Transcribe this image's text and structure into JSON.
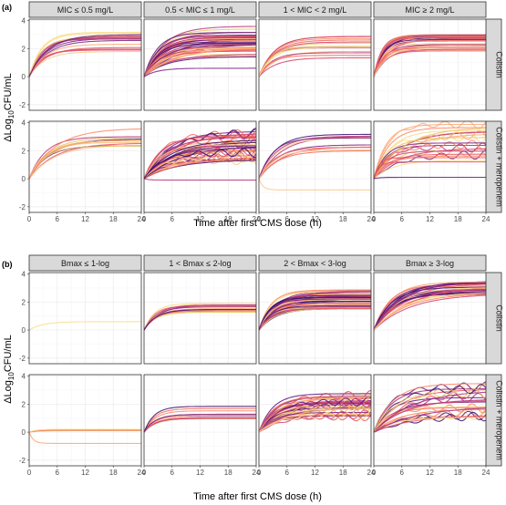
{
  "chart_data": [
    {
      "tag": "(a)",
      "type": "line",
      "xlabel": "Time after first CMS dose (h)",
      "ylabel_main": "ΔLog",
      "ylabel_sub": "10",
      "ylabel_rest": "CFU/mL",
      "xlim": [
        0,
        24
      ],
      "ylim": [
        -2.4,
        4.1
      ],
      "xticks": [
        "0",
        "6",
        "12",
        "18",
        "24"
      ],
      "yticks": [
        "-2",
        "0",
        "2",
        "4"
      ],
      "columns": [
        "MIC ≤ 0.5 mg/L",
        "0.5 < MIC ≤ 1 mg/L",
        "1 < MIC < 2 mg/L",
        "MIC ≥ 2 mg/L"
      ],
      "rows": [
        "Colistin",
        "Colistin + meropenem"
      ],
      "panels": [
        [
          {
            "count": 16,
            "plateau": [
              1.6,
              3.3
            ],
            "rate": [
              0.22,
              0.4
            ],
            "notes": ""
          },
          {
            "count": 40,
            "plateau": [
              1.4,
              3.6
            ],
            "rate": [
              0.14,
              0.35
            ],
            "low": [
              0.6
            ]
          },
          {
            "count": 14,
            "plateau": [
              1.3,
              2.9
            ],
            "rate": [
              0.25,
              0.45
            ]
          },
          {
            "count": 26,
            "plateau": [
              1.8,
              3.0
            ],
            "rate": [
              0.3,
              0.6
            ]
          }
        ],
        [
          {
            "count": 12,
            "plateau": [
              2.2,
              3.0
            ],
            "rate": [
              0.18,
              0.32
            ],
            "high": [
              3.6
            ]
          },
          {
            "count": 44,
            "plateau": [
              1.2,
              3.4
            ],
            "rate": [
              0.12,
              0.3
            ],
            "wavy": true,
            "flat": [
              -0.1
            ]
          },
          {
            "count": 10,
            "plateau": [
              1.8,
              3.2
            ],
            "rate": [
              0.2,
              0.35
            ],
            "drop": [
              -0.8
            ]
          },
          {
            "count": 22,
            "plateau": [
              1.3,
              3.9
            ],
            "rate": [
              0.15,
              0.4
            ],
            "flat": [
              1.5,
              1.2,
              0.1
            ],
            "wavy": true
          }
        ]
      ]
    },
    {
      "tag": "(b)",
      "type": "line",
      "xlabel": "Time after first CMS dose (h)",
      "ylabel_main": "ΔLog",
      "ylabel_sub": "10",
      "ylabel_rest": "CFU/mL",
      "xlim": [
        0,
        24
      ],
      "ylim": [
        -2.4,
        4.1
      ],
      "xticks": [
        "0",
        "6",
        "12",
        "18",
        "24"
      ],
      "yticks": [
        "-2",
        "0",
        "2",
        "4"
      ],
      "columns": [
        "Bmax ≤ 1-log",
        "1 < Bmax ≤ 2-log",
        "2 < Bmax < 3-log",
        "Bmax ≥ 3-log"
      ],
      "rows": [
        "Colistin",
        "Colistin + meropenem"
      ],
      "panels": [
        [
          {
            "count": 1,
            "plateau": [
              0.6,
              0.6
            ],
            "rate": [
              0.35,
              0.35
            ]
          },
          {
            "count": 14,
            "plateau": [
              1.2,
              1.95
            ],
            "rate": [
              0.3,
              0.5
            ]
          },
          {
            "count": 46,
            "plateau": [
              1.5,
              2.9
            ],
            "rate": [
              0.22,
              0.45
            ]
          },
          {
            "count": 28,
            "plateau": [
              2.4,
              3.5
            ],
            "rate": [
              0.12,
              0.3
            ]
          }
        ],
        [
          {
            "count": 4,
            "plateau": [
              0.1,
              0.2
            ],
            "rate": [
              0.5,
              0.7
            ],
            "drop": [
              -0.8
            ]
          },
          {
            "count": 10,
            "plateau": [
              0.9,
              1.9
            ],
            "rate": [
              0.3,
              0.5
            ]
          },
          {
            "count": 40,
            "plateau": [
              1.1,
              2.8
            ],
            "rate": [
              0.15,
              0.35
            ],
            "wavy": true
          },
          {
            "count": 26,
            "plateau": [
              1.0,
              3.6
            ],
            "rate": [
              0.1,
              0.3
            ],
            "wavy": true
          }
        ]
      ]
    }
  ],
  "palette": [
    "#3b0f70",
    "#5a167e",
    "#7b2382",
    "#9c2e7f",
    "#b73779",
    "#d3436e",
    "#e85362",
    "#f4695c",
    "#fb8761",
    "#fca772",
    "#fcc98c",
    "#f9dc8a",
    "#e9c46a"
  ]
}
